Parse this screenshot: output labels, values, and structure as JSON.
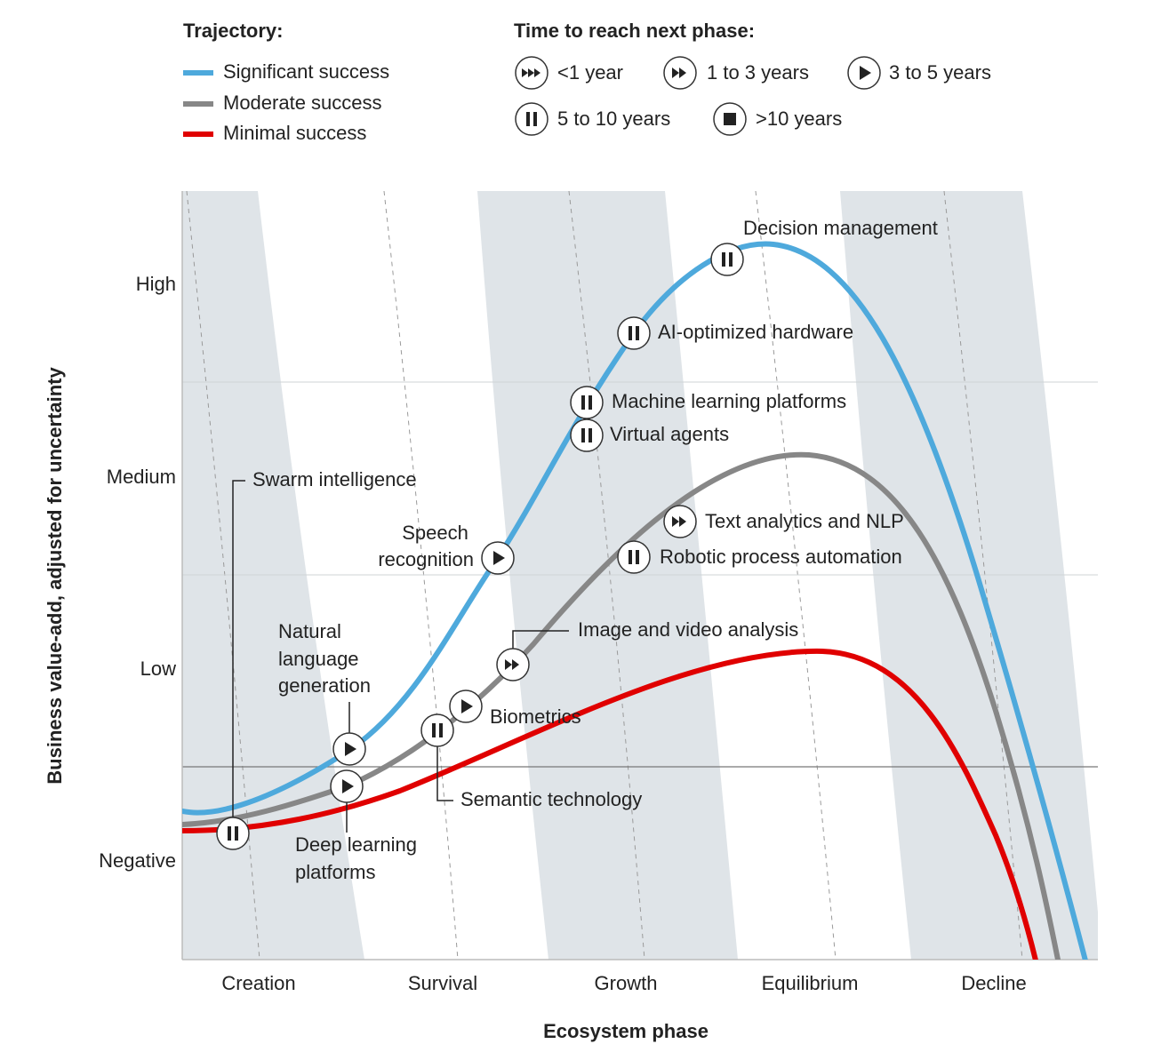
{
  "legend": {
    "trajectory": {
      "title": "Trajectory:",
      "items": [
        {
          "name": "Significant success",
          "color": "#4ea9dc"
        },
        {
          "name": "Moderate success",
          "color": "#878787"
        },
        {
          "name": "Minimal success",
          "color": "#e00000"
        }
      ]
    },
    "time": {
      "title": "Time to reach next phase:",
      "items": [
        "<1 year",
        "1 to 3 years",
        "3 to 5 years",
        "5 to 10 years",
        ">10 years"
      ]
    }
  },
  "y_axis": {
    "label": "Business value-add, adjusted for uncertainty",
    "categories": [
      "High",
      "Medium",
      "Low",
      "Negative"
    ]
  },
  "x_axis": {
    "label": "Ecosystem phase",
    "categories": [
      "Creation",
      "Survival",
      "Growth",
      "Equilibrium",
      "Decline"
    ]
  },
  "technologies": [
    {
      "label": "Decision management"
    },
    {
      "label": "AI-optimized hardware"
    },
    {
      "label": "Machine learning platforms"
    },
    {
      "label": "Virtual agents"
    },
    {
      "label": "Text analytics and NLP"
    },
    {
      "label": "Robotic process automation"
    },
    {
      "label": [
        "Speech",
        "recognition"
      ]
    },
    {
      "label": "Image and video analysis"
    },
    {
      "label": "Biometrics"
    },
    {
      "label": "Semantic technology"
    },
    {
      "label": [
        "Natural",
        "language",
        "generation"
      ]
    },
    {
      "label": [
        "Deep learning",
        "platforms"
      ]
    },
    {
      "label": "Swarm intelligence"
    }
  ]
}
